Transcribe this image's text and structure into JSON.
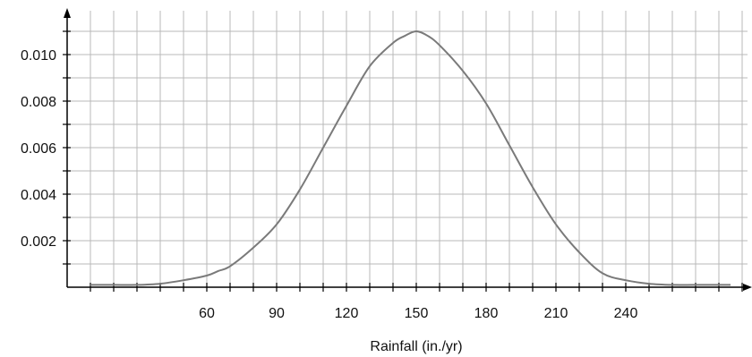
{
  "chart_data": {
    "type": "line",
    "title": "",
    "xlabel": "Rainfall (in./yr)",
    "ylabel": "",
    "xlim": [
      0,
      285
    ],
    "ylim": [
      0,
      0.0116
    ],
    "grid": true,
    "x_ticks": [
      "60",
      "90",
      "120",
      "150",
      "180",
      "210",
      "240"
    ],
    "y_ticks": [
      "0.002",
      "0.004",
      "0.006",
      "0.008",
      "0.010"
    ],
    "series": [
      {
        "x": [
          10,
          20,
          30,
          40,
          50,
          60,
          65,
          70,
          80,
          90,
          100,
          110,
          120,
          130,
          140,
          145,
          150,
          155,
          160,
          170,
          180,
          190,
          200,
          210,
          220,
          230,
          240,
          250,
          260,
          270,
          285
        ],
        "values": [
          0.0001,
          0.0001,
          0.0001,
          0.00015,
          0.0003,
          0.0005,
          0.0007,
          0.0009,
          0.0017,
          0.0027,
          0.0042,
          0.006,
          0.0078,
          0.0095,
          0.0105,
          0.0108,
          0.011,
          0.0108,
          0.0104,
          0.0093,
          0.0079,
          0.0061,
          0.0043,
          0.0027,
          0.0015,
          0.0006,
          0.0003,
          0.00015,
          0.0001,
          0.0001,
          0.0001
        ]
      }
    ],
    "colors": {
      "curve": "#7a7a7a",
      "grid": "#b8b8b8",
      "axis": "#000000"
    }
  }
}
